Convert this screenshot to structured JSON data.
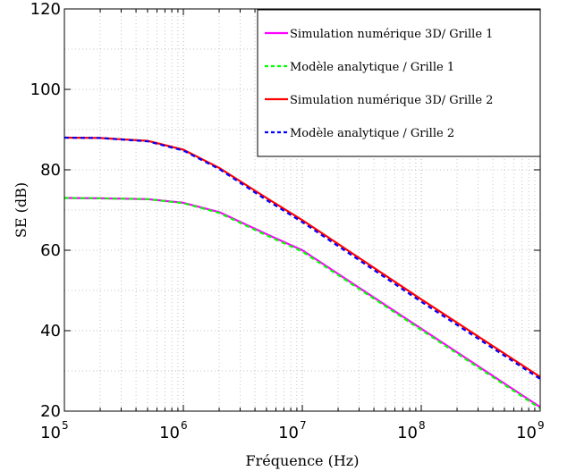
{
  "chart_data": {
    "type": "line",
    "xlabel": "Fréquence (Hz)",
    "ylabel": "SE (dB)",
    "xscale": "log",
    "xlim": [
      100000,
      1000000000
    ],
    "ylim": [
      20,
      120
    ],
    "xticks": [
      {
        "value": 100000,
        "base": "10",
        "exp": "5"
      },
      {
        "value": 1000000,
        "base": "10",
        "exp": "6"
      },
      {
        "value": 10000000,
        "base": "10",
        "exp": "7"
      },
      {
        "value": 100000000,
        "base": "10",
        "exp": "8"
      },
      {
        "value": 1000000000,
        "base": "10",
        "exp": "9"
      }
    ],
    "yticks": [
      "20",
      "40",
      "60",
      "80",
      "100",
      "120"
    ],
    "grid": "on (dotted, major and minor)",
    "legend_position": "top-right",
    "series": [
      {
        "name": "Simulation numérique 3D/ Grille 1",
        "color": "#ff00ff",
        "style": "solid",
        "x": [
          100000,
          200000,
          500000,
          1000000,
          2000000,
          5000000,
          10000000,
          100000000,
          1000000000
        ],
        "y": [
          73,
          72.9,
          72.7,
          71.8,
          69.5,
          64,
          60,
          40.5,
          21
        ]
      },
      {
        "name": "Modèle analytique / Grille 1",
        "color": "#00ff00",
        "style": "dashed",
        "x": [
          100000,
          200000,
          500000,
          1000000,
          2000000,
          5000000,
          10000000,
          100000000,
          1000000000
        ],
        "y": [
          73,
          72.9,
          72.7,
          71.7,
          69.3,
          63.7,
          59.7,
          40.2,
          20.7
        ]
      },
      {
        "name": "Simulation numérique 3D/ Grille 2",
        "color": "#ff0000",
        "style": "solid",
        "x": [
          100000,
          200000,
          500000,
          1000000,
          2000000,
          5000000,
          10000000,
          100000000,
          1000000000
        ],
        "y": [
          88,
          87.9,
          87.2,
          85,
          80.5,
          73,
          67.5,
          47.8,
          28.5
        ]
      },
      {
        "name": "Modèle analytique / Grille 2",
        "color": "#0000ff",
        "style": "dashed",
        "x": [
          100000,
          200000,
          500000,
          1000000,
          2000000,
          5000000,
          10000000,
          100000000,
          1000000000
        ],
        "y": [
          88,
          87.9,
          87.1,
          84.8,
          80.2,
          72.5,
          67,
          47.2,
          28
        ]
      }
    ]
  }
}
